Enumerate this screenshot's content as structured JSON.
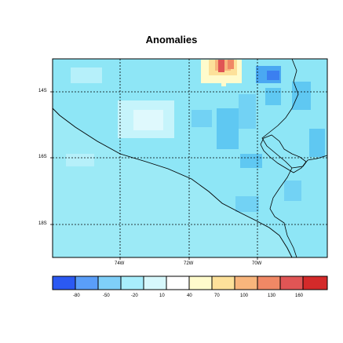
{
  "title": "Anomalies",
  "map": {
    "lat_ticks": [
      "14S",
      "16S",
      "18S"
    ],
    "lon_ticks": [
      "74W",
      "72W",
      "70W"
    ],
    "gridlines": true
  },
  "colorbar": {
    "labels": [
      "-80",
      "-50",
      "-20",
      "10",
      "40",
      "70",
      "100",
      "130",
      "160"
    ],
    "colors": [
      "#2b59f2",
      "#5a9ef8",
      "#7fcff8",
      "#a8eefc",
      "#d7f8fc",
      "#ffffff",
      "#fffbcc",
      "#fde19a",
      "#f8b57c",
      "#f08865",
      "#e05555",
      "#d42a2a"
    ]
  },
  "palette": {
    "ocean": "#9ceaf6",
    "land_base": "#8ee6f6",
    "land_mid": "#5fc8f2",
    "land_light": "#dff9fd",
    "warm1": "#fde19a",
    "warm2": "#f8b57c",
    "warm3": "#e05555",
    "blue_dark": "#3b7ff0"
  }
}
